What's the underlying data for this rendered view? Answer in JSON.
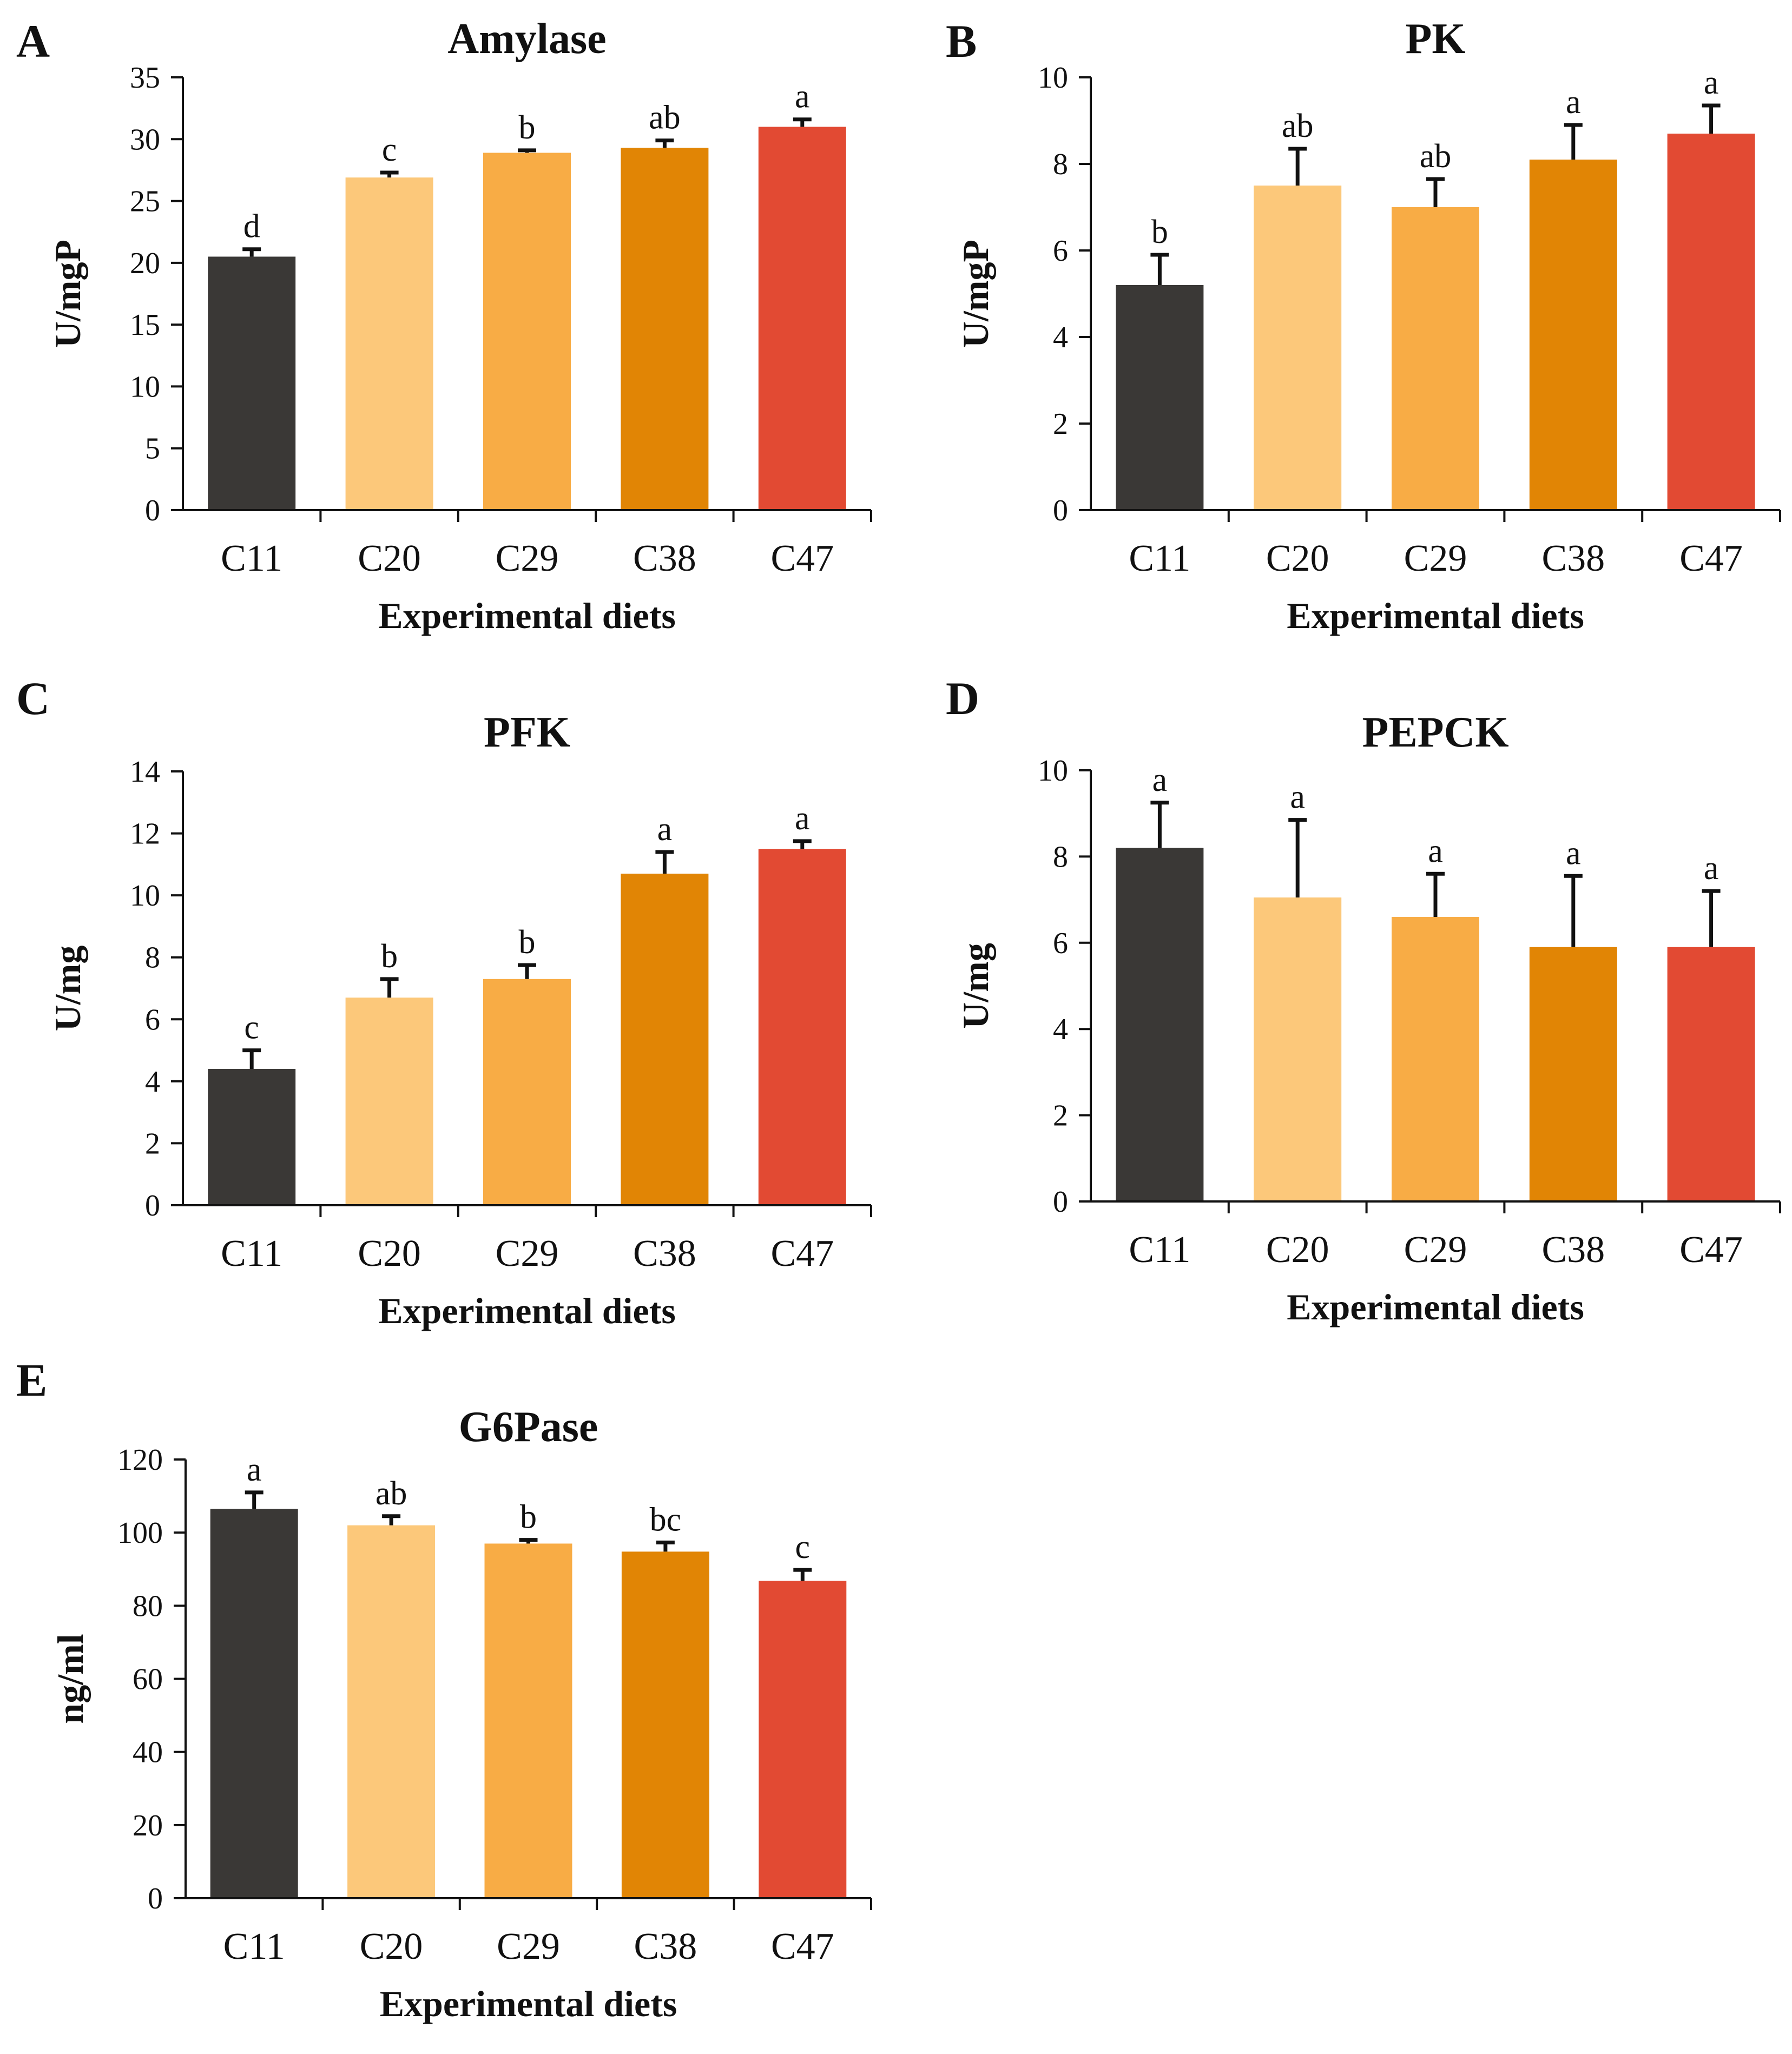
{
  "figure": {
    "legend": "none",
    "categories": [
      "C11",
      "C20",
      "C29",
      "C38",
      "C47"
    ],
    "bar_colors": [
      "#3a3836",
      "#fcc87a",
      "#f8ac45",
      "#e18505",
      "#e24a33"
    ],
    "axis_color": "#111111"
  },
  "chart_data": [
    {
      "panel": "A",
      "type": "bar",
      "title": "Amylase",
      "xlabel": "Experimental diets",
      "ylabel": "U/mgP",
      "categories": [
        "C11",
        "C20",
        "C29",
        "C38",
        "C47"
      ],
      "values": [
        20.5,
        26.9,
        28.9,
        29.3,
        31.0
      ],
      "errors": [
        0.6,
        0.4,
        0.2,
        0.6,
        0.6
      ],
      "significance": [
        "d",
        "c",
        "b",
        "ab",
        "a"
      ],
      "ylim": [
        0,
        35
      ],
      "yticks": [
        0,
        5,
        10,
        15,
        20,
        25,
        30,
        35
      ],
      "ytick_labels": [
        "0",
        "5",
        "10",
        "15",
        "20",
        "25",
        "30",
        "35"
      ]
    },
    {
      "panel": "B",
      "type": "bar",
      "title": "PK",
      "xlabel": "Experimental diets",
      "ylabel": "U/mgP",
      "categories": [
        "C11",
        "C20",
        "C29",
        "C38",
        "C47"
      ],
      "values": [
        5.2,
        7.5,
        7.0,
        8.1,
        8.7
      ],
      "errors": [
        0.7,
        0.85,
        0.65,
        0.8,
        0.65
      ],
      "significance": [
        "b",
        "ab",
        "ab",
        "a",
        "a"
      ],
      "ylim": [
        0,
        10
      ],
      "yticks": [
        0,
        2,
        4,
        6,
        8,
        10
      ],
      "ytick_labels": [
        "0",
        "2",
        "4",
        "6",
        "8",
        "10"
      ]
    },
    {
      "panel": "C",
      "type": "bar",
      "title": "PFK",
      "xlabel": "Experimental diets",
      "ylabel": "U/mg",
      "categories": [
        "C11",
        "C20",
        "C29",
        "C38",
        "C47"
      ],
      "values": [
        4.4,
        6.7,
        7.3,
        10.7,
        11.5
      ],
      "errors": [
        0.6,
        0.6,
        0.45,
        0.7,
        0.25
      ],
      "significance": [
        "c",
        "b",
        "b",
        "a",
        "a"
      ],
      "ylim": [
        0,
        14
      ],
      "yticks": [
        0,
        2,
        4,
        6,
        8,
        10,
        12,
        14
      ],
      "ytick_labels": [
        "0",
        "2",
        "4",
        "6",
        "8",
        "10",
        "12",
        "14"
      ]
    },
    {
      "panel": "D",
      "type": "bar",
      "title": "PEPCK",
      "xlabel": "Experimental diets",
      "ylabel": "U/mg",
      "categories": [
        "C11",
        "C20",
        "C29",
        "C38",
        "C47"
      ],
      "values": [
        8.2,
        7.05,
        6.6,
        5.9,
        5.9
      ],
      "errors": [
        1.05,
        1.8,
        1.0,
        1.65,
        1.3
      ],
      "significance": [
        "a",
        "a",
        "a",
        "a",
        "a"
      ],
      "ylim": [
        0,
        10
      ],
      "yticks": [
        0,
        2,
        4,
        6,
        8,
        10
      ],
      "ytick_labels": [
        "0",
        "2",
        "4",
        "6",
        "8",
        "10"
      ]
    },
    {
      "panel": "E",
      "type": "bar",
      "title": "G6Pase",
      "xlabel": "Experimental diets",
      "ylabel": "ng/ml",
      "categories": [
        "C11",
        "C20",
        "C29",
        "C38",
        "C47"
      ],
      "values": [
        106.5,
        102.0,
        97.0,
        94.8,
        86.8
      ],
      "errors": [
        4.5,
        2.5,
        1.0,
        2.5,
        3.0
      ],
      "significance": [
        "a",
        "ab",
        "b",
        "bc",
        "c"
      ],
      "ylim": [
        0,
        120
      ],
      "yticks": [
        0,
        20,
        40,
        60,
        80,
        100,
        120
      ],
      "ytick_labels": [
        "0",
        "20",
        "40",
        "60",
        "80",
        "100",
        "120"
      ]
    }
  ]
}
